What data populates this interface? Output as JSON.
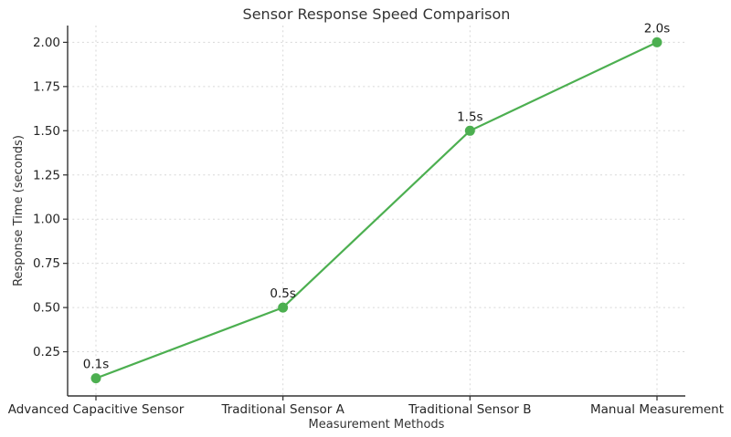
{
  "chart_data": {
    "type": "line",
    "title": "Sensor Response Speed Comparison",
    "xlabel": "Measurement Methods",
    "ylabel": "Response Time (seconds)",
    "categories": [
      "Advanced Capacitive Sensor",
      "Traditional Sensor A",
      "Traditional Sensor B",
      "Manual Measurement"
    ],
    "values": [
      0.1,
      0.5,
      1.5,
      2.0
    ],
    "point_labels": [
      "0.1s",
      "0.5s",
      "1.5s",
      "2.0s"
    ],
    "ytick_values": [
      0.25,
      0.5,
      0.75,
      1.0,
      1.25,
      1.5,
      1.75,
      2.0
    ],
    "ytick_labels": [
      "0.25",
      "0.50",
      "0.75",
      "1.00",
      "1.25",
      "1.50",
      "1.75",
      "2.00"
    ],
    "ylim": [
      0,
      2.095
    ],
    "grid": true,
    "grid_style": "dashed",
    "legend": null,
    "line_color": "#4caf50",
    "marker_color": "#4caf50",
    "background_color": "#ffffff",
    "axis_color": "#333333",
    "grid_color": "#d7d7d7",
    "text_color": "#262626"
  }
}
